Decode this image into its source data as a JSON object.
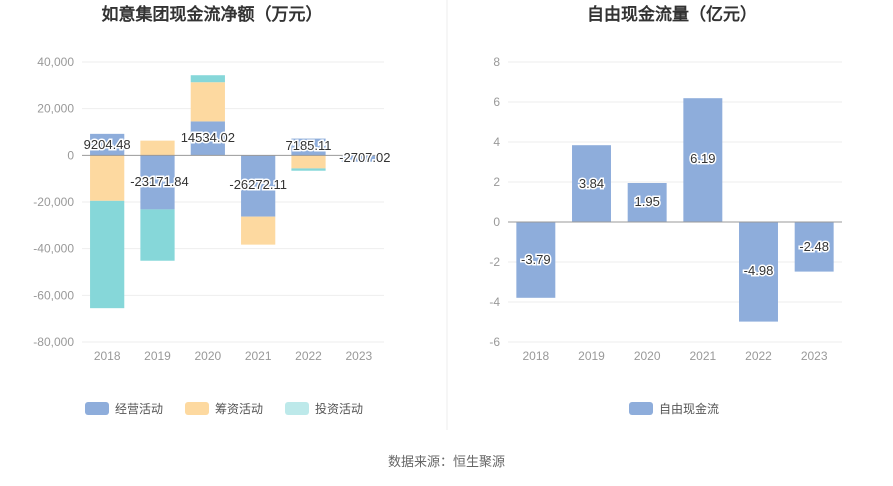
{
  "colors": {
    "operating": "#8eaddb",
    "financing": "#fdd9a0",
    "investing": "#86d7d9",
    "free_cash_flow": "#8eaddb",
    "grid": "#eeeeee",
    "axis": "#999999"
  },
  "source": "数据来源：恒生聚源",
  "chart_data": [
    {
      "type": "bar",
      "stacked": true,
      "title": "如意集团现金流净额（万元）",
      "categories": [
        "2018",
        "2019",
        "2020",
        "2021",
        "2022",
        "2023"
      ],
      "ylim": [
        -80000,
        40000
      ],
      "yticks": [
        40000,
        20000,
        0,
        -20000,
        -40000,
        -60000,
        -80000
      ],
      "ytick_labels": [
        "40,000",
        "20,000",
        "0",
        "-20,000",
        "-40,000",
        "-60,000",
        "-80,000"
      ],
      "grid": true,
      "legend_position": "bottom",
      "series": [
        {
          "name": "经营活动",
          "color_key": "operating",
          "values": [
            9204.48,
            -23171.84,
            14534.02,
            -26272.11,
            7185.11,
            -2707.02
          ]
        },
        {
          "name": "筹资活动",
          "color_key": "financing",
          "values": [
            -19500,
            6300,
            16800,
            -12000,
            -5600,
            0
          ]
        },
        {
          "name": "投资活动",
          "color_key": "investing",
          "values": [
            -46000,
            -22000,
            3000,
            0,
            -1000,
            0
          ]
        }
      ],
      "data_labels": [
        "9204.48",
        "-23171.84",
        "14534.02",
        "-26272.11",
        "7185.11",
        "-2707.02"
      ]
    },
    {
      "type": "bar",
      "title": "自由现金流量（亿元）",
      "categories": [
        "2018",
        "2019",
        "2020",
        "2021",
        "2022",
        "2023"
      ],
      "ylim": [
        -6,
        8
      ],
      "yticks": [
        8,
        6,
        4,
        2,
        0,
        -2,
        -4,
        -6
      ],
      "ytick_labels": [
        "8",
        "6",
        "4",
        "2",
        "0",
        "-2",
        "-4",
        "-6"
      ],
      "grid": true,
      "legend_position": "bottom",
      "series": [
        {
          "name": "自由现金流",
          "color_key": "free_cash_flow",
          "values": [
            -3.79,
            3.84,
            1.95,
            6.19,
            -4.98,
            -2.48
          ]
        }
      ],
      "data_labels": [
        "-3.79",
        "3.84",
        "1.95",
        "6.19",
        "-4.98",
        "-2.48"
      ]
    }
  ]
}
